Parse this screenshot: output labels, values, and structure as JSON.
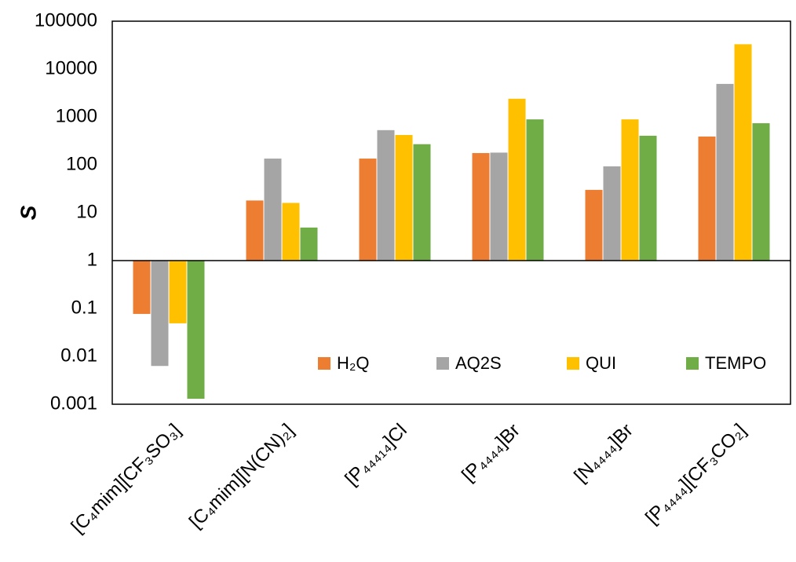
{
  "chart_data": {
    "type": "bar",
    "y_label": "S",
    "log_scale": true,
    "grid": false,
    "legend": "lower right",
    "categories": [
      "[C₄mim][CF₃SO₃]",
      "[C₄mim][N(CN)₂]",
      "[P₄₄₄₁₄]Cl",
      "[P₄₄₄₄]Br",
      "[N₄₄₄₄]Br",
      "[P₄₄₄₄][CF₃CO₂]"
    ],
    "series": [
      {
        "name": "H₂Q",
        "color": "#ED7D31",
        "values": [
          0.077,
          18,
          135,
          176,
          30,
          390
        ]
      },
      {
        "name": "AQ2S",
        "color": "#A5A5A5",
        "values": [
          0.0063,
          135,
          530,
          180,
          93,
          4900
        ]
      },
      {
        "name": "QUI",
        "color": "#FFC000",
        "values": [
          0.049,
          16,
          420,
          2400,
          890,
          33000
        ]
      },
      {
        "name": "TEMPO",
        "color": "#70AD47",
        "values": [
          0.0013,
          4.9,
          270,
          890,
          405,
          740
        ]
      }
    ],
    "ylim": [
      0.001,
      100000
    ],
    "yticks": [
      0.001,
      0.01,
      0.1,
      1,
      10,
      100,
      1000,
      10000,
      100000
    ]
  }
}
